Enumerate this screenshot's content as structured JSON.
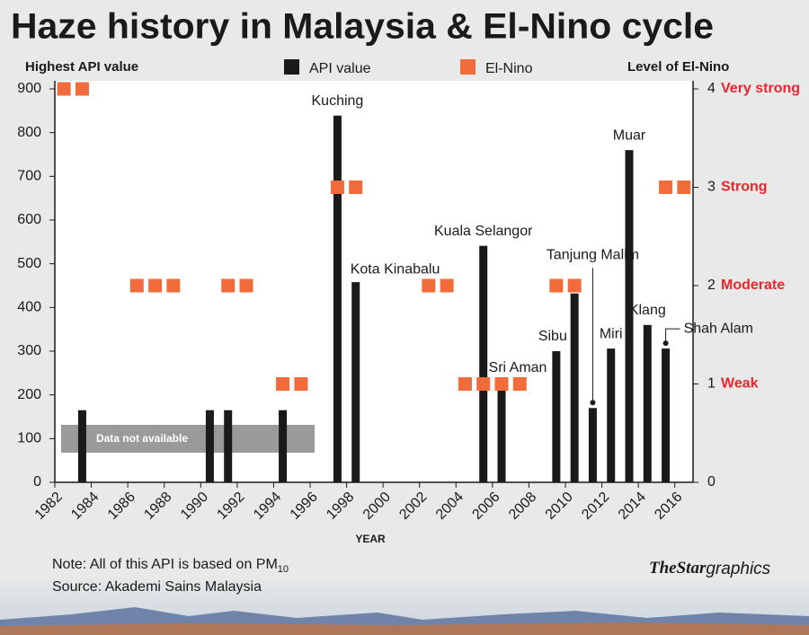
{
  "chart_data": {
    "type": "bar",
    "title": "Haze history in Malaysia & El-Nino cycle",
    "y_label": "Highest API value",
    "y2_label": "Level of El-Nino",
    "x_label": "YEAR",
    "annotation": "Data not available",
    "note": "Note: All of this API is based on PM",
    "note_subscript": "10",
    "source": "Source: Akademi Sains Malaysia",
    "credit_brand": "TheStar",
    "credit_suffix": "graphics",
    "xlim": [
      1982,
      2017
    ],
    "xticks": [
      1982,
      1984,
      1986,
      1988,
      1990,
      1992,
      1994,
      1996,
      1998,
      2000,
      2002,
      2004,
      2006,
      2008,
      2010,
      2012,
      2014,
      2016
    ],
    "ylim": [
      0,
      900
    ],
    "yticks": [
      0,
      100,
      200,
      300,
      400,
      500,
      600,
      700,
      800,
      900
    ],
    "y2lim": [
      0,
      4
    ],
    "y2ticks": [
      0,
      1,
      2,
      3,
      4
    ],
    "y2tick_names": [
      null,
      "Weak",
      "Moderate",
      "Strong",
      "Very strong"
    ],
    "grid": false,
    "series": [
      {
        "name": "API value",
        "type": "bar",
        "color": "#1a1a1a",
        "x": [
          1983,
          1990,
          1991,
          1994,
          1997,
          1998,
          2005,
          2006,
          2009,
          2010,
          2011,
          2012,
          2013,
          2014,
          2015
        ],
        "values": [
          165,
          165,
          165,
          165,
          839,
          458,
          541,
          220,
          300,
          432,
          170,
          306,
          760,
          360,
          306
        ],
        "labels": [
          null,
          null,
          null,
          null,
          "Kuching",
          "Kota Kinabalu",
          "Kuala Selangor",
          "Sri Aman",
          "Sibu",
          null,
          "Tanjung Malim",
          "Miri",
          "Muar",
          "Klang",
          "Shah Alam"
        ]
      },
      {
        "name": "El-Nino",
        "type": "square",
        "axis": "y2",
        "color": "#f26b3a",
        "x": [
          1982,
          1983,
          1986,
          1987,
          1988,
          1991,
          1992,
          1994,
          1995,
          1997,
          1998,
          2002,
          2003,
          2004,
          2005,
          2006,
          2007,
          2009,
          2010,
          2015,
          2016
        ],
        "values": [
          4,
          4,
          2,
          2,
          2,
          2,
          2,
          1,
          1,
          3,
          3,
          2,
          2,
          1,
          1,
          1,
          1,
          2,
          2,
          3,
          3
        ]
      }
    ]
  }
}
